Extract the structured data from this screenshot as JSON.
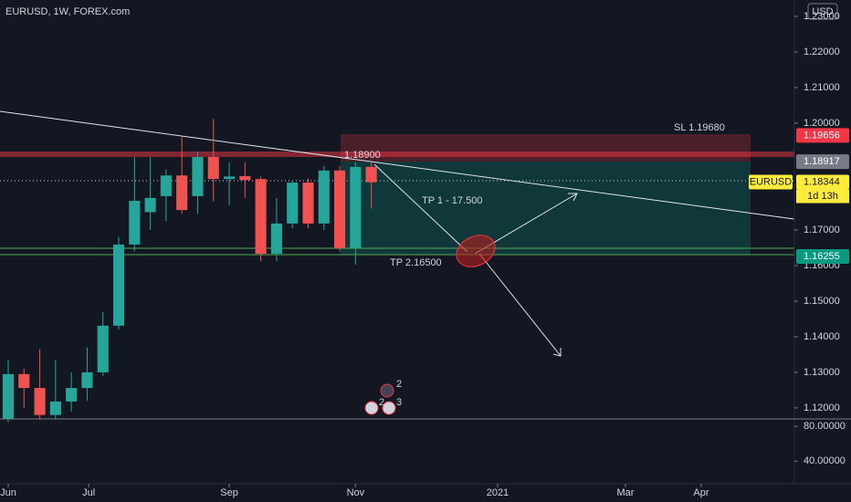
{
  "chart_data": {
    "type": "candlestick",
    "title": "EURUSD, 1W, FOREX.com",
    "currency": "USD",
    "up_color": "#26a69a",
    "down_color": "#ef5350",
    "open": [
      1.117,
      1.1295,
      1.1256,
      1.118,
      1.1218,
      1.1256,
      1.13,
      1.1431,
      1.1659,
      1.175,
      1.1795,
      1.1853,
      1.1795,
      1.1905,
      1.1843,
      1.1851,
      1.1843,
      1.1633,
      1.1718,
      1.1833,
      1.1718,
      1.1867,
      1.1649,
      1.1877
    ],
    "high": [
      1.1335,
      1.131,
      1.1365,
      1.1335,
      1.13,
      1.137,
      1.147,
      1.168,
      1.1905,
      1.1905,
      1.187,
      1.1965,
      1.192,
      1.2012,
      1.189,
      1.189,
      1.185,
      1.179,
      1.184,
      1.1845,
      1.188,
      1.188,
      1.189,
      1.189
    ],
    "low": [
      1.116,
      1.12,
      1.117,
      1.1168,
      1.119,
      1.122,
      1.129,
      1.142,
      1.164,
      1.17,
      1.1725,
      1.1745,
      1.1745,
      1.178,
      1.177,
      1.179,
      1.1612,
      1.1612,
      1.1705,
      1.1705,
      1.17,
      1.164,
      1.1603,
      1.176
    ],
    "close": [
      1.1295,
      1.1256,
      1.118,
      1.1218,
      1.1256,
      1.13,
      1.1431,
      1.1659,
      1.1782,
      1.179,
      1.1853,
      1.1756,
      1.1905,
      1.1843,
      1.185,
      1.184,
      1.1633,
      1.1718,
      1.1833,
      1.1718,
      1.1867,
      1.1649,
      1.1877,
      1.1834
    ],
    "xlim": [
      -0.52,
      49.8
    ],
    "xticks": [
      {
        "value": 0,
        "label": "Jun"
      },
      {
        "value": 5.1,
        "label": "Jul"
      },
      {
        "value": 14,
        "label": "Sep"
      },
      {
        "value": 22,
        "label": "Nov"
      },
      {
        "value": 31,
        "label": "2021"
      },
      {
        "value": 39.1,
        "label": "Mar"
      },
      {
        "value": 43.9,
        "label": "Apr"
      }
    ],
    "ylim": [
      1.1169,
      1.2346
    ],
    "yticks": [
      {
        "value": 1.23,
        "label": "1.23000"
      },
      {
        "value": 1.22,
        "label": "1.22000"
      },
      {
        "value": 1.21,
        "label": "1.21000"
      },
      {
        "value": 1.2,
        "label": "1.20000"
      },
      {
        "value": 1.17,
        "label": "1.17000"
      },
      {
        "value": 1.16,
        "label": "1.16000"
      },
      {
        "value": 1.15,
        "label": "1.15000"
      },
      {
        "value": 1.14,
        "label": "1.14000"
      },
      {
        "value": 1.13,
        "label": "1.13000"
      },
      {
        "value": 1.12,
        "label": "1.12000"
      }
    ],
    "grid": false,
    "price_tags": [
      {
        "value": 1.19656,
        "color": "#f23645"
      },
      {
        "value": 1.18917,
        "color": "#787b86"
      },
      {
        "value": 1.16255,
        "color": "#089981"
      }
    ],
    "last_price": {
      "name": "EURUSD",
      "value": 1.18344,
      "countdown": "1d 13h",
      "color": "#ffeb3b"
    },
    "annotations": [
      "SL 1.19680",
      "1.18900",
      "TP 1 - 17.500",
      "TP 2.16500"
    ],
    "events": [
      "2",
      "2",
      "3"
    ],
    "pane2": {
      "ylim": [
        14.1,
        88.6
      ],
      "yticks": [
        {
          "value": 80,
          "label": "80.00000"
        },
        {
          "value": 40,
          "label": "40.00000"
        }
      ]
    }
  }
}
